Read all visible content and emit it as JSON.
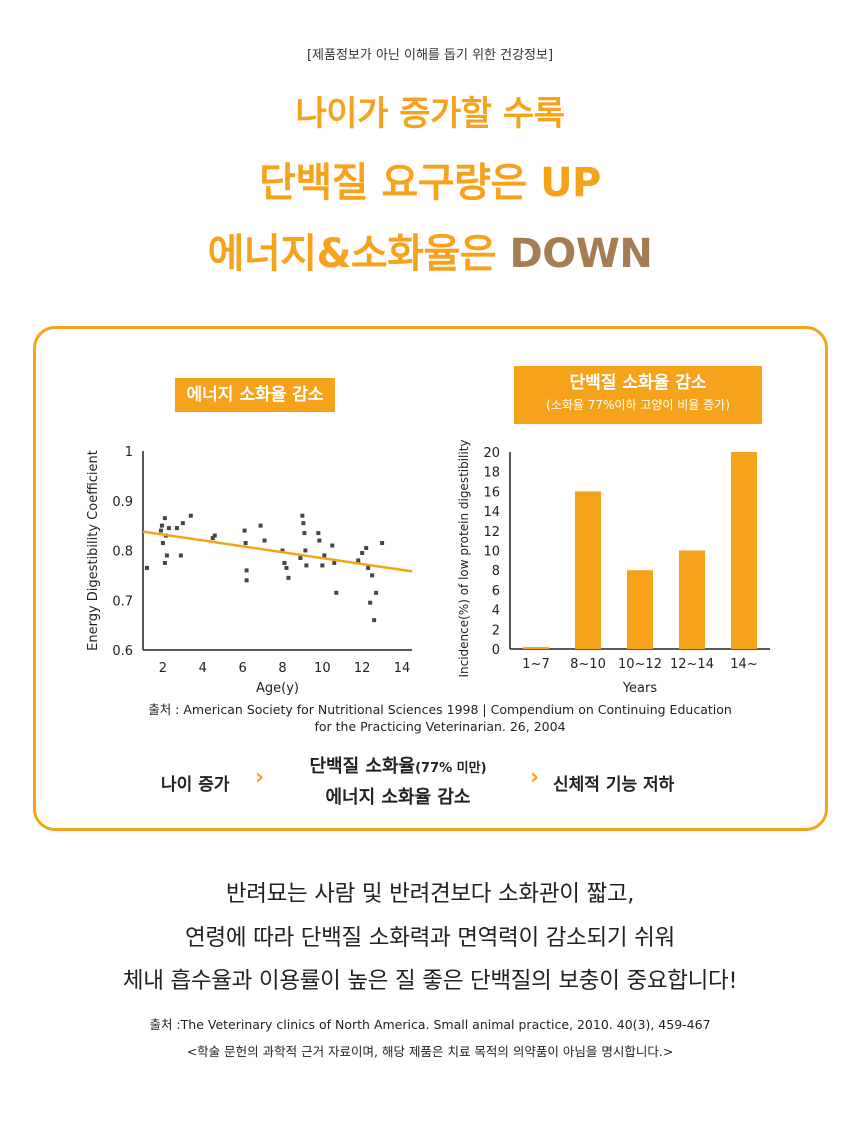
{
  "header": {
    "disclaimer": "[제품정보가 아닌 이해를 돕기 위한 건강정보]",
    "line1": "나이가 증가할 수록",
    "line2": "단백질 요구량은 UP",
    "line3_prefix": "에너지&소화율은 ",
    "line3_down": "DOWN"
  },
  "charts": {
    "left_tag": "에너지 소화율 감소",
    "right_tag_title": "단백질 소화율 감소",
    "right_tag_sub": "(소화율 77%이하 고양이 비율 증가)"
  },
  "chart_data": [
    {
      "type": "scatter",
      "title": "에너지 소화율 감소",
      "xlabel": "Age(y)",
      "ylabel": "Energy Digestibility Coefficient",
      "xlim": [
        1,
        14.5
      ],
      "ylim": [
        0.6,
        1.0
      ],
      "xticks": [
        "2",
        "4",
        "6",
        "8",
        "10",
        "12",
        "14"
      ],
      "yticks": [
        "0.6",
        "0.7",
        "0.8",
        "0.9",
        "1"
      ],
      "trend": {
        "x": [
          1,
          14.5
        ],
        "y": [
          0.838,
          0.758
        ]
      },
      "points": [
        [
          1.2,
          0.765
        ],
        [
          1.9,
          0.84
        ],
        [
          1.95,
          0.85
        ],
        [
          2.0,
          0.815
        ],
        [
          2.1,
          0.865
        ],
        [
          2.15,
          0.83
        ],
        [
          2.2,
          0.79
        ],
        [
          2.3,
          0.845
        ],
        [
          2.1,
          0.775
        ],
        [
          2.7,
          0.845
        ],
        [
          2.9,
          0.79
        ],
        [
          3.0,
          0.855
        ],
        [
          3.4,
          0.87
        ],
        [
          4.5,
          0.825
        ],
        [
          4.6,
          0.83
        ],
        [
          6.1,
          0.84
        ],
        [
          6.15,
          0.815
        ],
        [
          6.2,
          0.76
        ],
        [
          6.2,
          0.74
        ],
        [
          6.9,
          0.85
        ],
        [
          7.1,
          0.82
        ],
        [
          8.0,
          0.8
        ],
        [
          8.1,
          0.775
        ],
        [
          8.2,
          0.765
        ],
        [
          8.3,
          0.745
        ],
        [
          8.9,
          0.785
        ],
        [
          9.0,
          0.87
        ],
        [
          9.05,
          0.855
        ],
        [
          9.1,
          0.835
        ],
        [
          9.15,
          0.8
        ],
        [
          9.2,
          0.77
        ],
        [
          9.8,
          0.835
        ],
        [
          9.85,
          0.82
        ],
        [
          10.0,
          0.77
        ],
        [
          10.1,
          0.79
        ],
        [
          10.5,
          0.81
        ],
        [
          10.6,
          0.775
        ],
        [
          10.7,
          0.715
        ],
        [
          11.8,
          0.78
        ],
        [
          12.0,
          0.795
        ],
        [
          12.2,
          0.805
        ],
        [
          12.3,
          0.765
        ],
        [
          12.4,
          0.695
        ],
        [
          12.5,
          0.75
        ],
        [
          12.6,
          0.66
        ],
        [
          12.7,
          0.715
        ],
        [
          13.0,
          0.815
        ]
      ]
    },
    {
      "type": "bar",
      "title": "단백질 소화율 감소",
      "subtitle": "(소화율 77%이하 고양이 비율 증가)",
      "xlabel": "Years",
      "ylabel": "Incidence(%) of low protein digestibility",
      "categories": [
        "1~7",
        "8~10",
        "10~12",
        "12~14",
        "14~"
      ],
      "values": [
        0.2,
        16,
        8,
        10,
        20
      ],
      "ylim": [
        0,
        20
      ],
      "yticks": [
        "0",
        "2",
        "4",
        "6",
        "8",
        "10",
        "12",
        "14",
        "16",
        "18",
        "20"
      ]
    }
  ],
  "colors": {
    "accent": "#f7a21b",
    "down": "#a67c52",
    "highlight": "#fde9cb",
    "point": "#444444"
  },
  "source1": {
    "line1": "출처 : American Society for Nutritional Sciences 1998 | Compendium on Continuing Education",
    "line2": "for the Practicing Veterinarian. 26, 2004"
  },
  "flow": {
    "left": "나이 증가",
    "mid1": "단백질 소화율",
    "mid1_small": "(77% 미만)",
    "mid2": "에너지 소화율 감소",
    "right": "신체적 기능 저하",
    "chevron": "›"
  },
  "paragraph": {
    "line1": "반려묘는 사람 및 반려견보다 소화관이 짧고,",
    "line2": "연령에 따라 단백질 소화력과 면역력이 감소되기 쉬워",
    "line3": "체내 흡수율과 이용률이 높은 질 좋은 단백질의 보충이 중요합니다!"
  },
  "source2": {
    "line1": "출처 :The Veterinary clinics of North America. Small animal practice, 2010. 40(3), 459-467",
    "line2": "<학술 문헌의 과학적 근거 자료이며, 해당 제품은 치료 목적의 의약품이 아님을 명시합니다.>"
  }
}
